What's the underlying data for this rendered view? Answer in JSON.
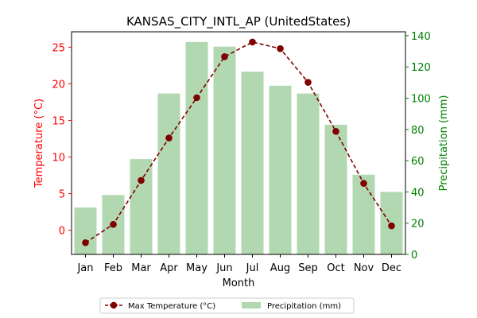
{
  "chart_data": {
    "type": "bar",
    "title": "KANSAS_CITY_INTL_AP (UnitedStates)",
    "xlabel": "Month",
    "ylabel_left": "Temperature (°C)",
    "ylabel_right": "Precipitation (mm)",
    "categories": [
      "Jan",
      "Feb",
      "Mar",
      "Apr",
      "May",
      "Jun",
      "Jul",
      "Aug",
      "Sep",
      "Oct",
      "Nov",
      "Dec"
    ],
    "series": [
      {
        "name": "Max Temperature (°C)",
        "type": "line",
        "axis": "left",
        "color": "#800000",
        "values": [
          -1.7,
          0.8,
          6.8,
          12.6,
          18.1,
          23.7,
          25.7,
          24.8,
          20.2,
          13.5,
          6.4,
          0.6
        ]
      },
      {
        "name": "Precipitation (mm)",
        "type": "bar",
        "axis": "right",
        "color": "#b2d8b2",
        "values": [
          30,
          38,
          61,
          103,
          136,
          133,
          117,
          108,
          103,
          83,
          51,
          40
        ]
      }
    ],
    "ylim_left": [
      -3.3,
      27.1
    ],
    "ylim_right": [
      0,
      142.5
    ],
    "yticks_left": [
      0,
      5,
      10,
      15,
      20,
      25
    ],
    "yticks_right": [
      0,
      20,
      40,
      60,
      80,
      100,
      120,
      140
    ],
    "left_axis_color": "#ff0000",
    "right_axis_color": "#008000",
    "grid": false,
    "legend_position": "bottom-center"
  }
}
